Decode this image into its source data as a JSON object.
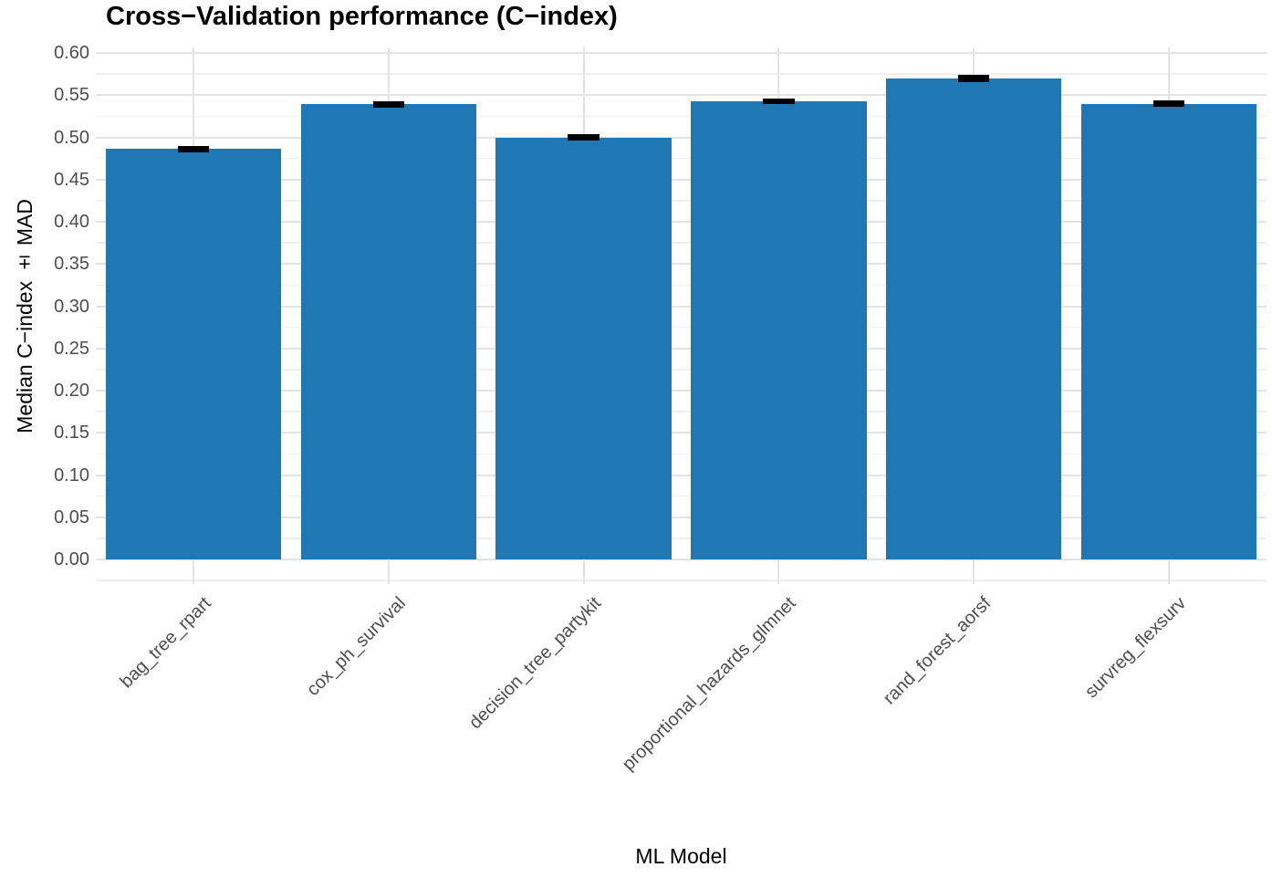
{
  "chart_data": {
    "type": "bar",
    "title": "Cross−Validation performance (C−index)",
    "xlabel": "ML Model",
    "ylabel": "Median C−index ± MAD",
    "categories": [
      "bag_tree_rpart",
      "cox_ph_survival",
      "decision_tree_partykit",
      "proportional_hazards_glmnet",
      "rand_forest_aorsf",
      "survreg_flexsurv"
    ],
    "values": [
      0.486,
      0.539,
      0.5,
      0.543,
      0.57,
      0.54
    ],
    "mad": [
      0.002,
      0.002,
      0.002,
      0.002,
      0.003,
      0.002
    ],
    "ylim": [
      0,
      0.6
    ],
    "ytick_step": 0.05,
    "yticks": [
      "0.00",
      "0.05",
      "0.10",
      "0.15",
      "0.20",
      "0.25",
      "0.30",
      "0.35",
      "0.40",
      "0.45",
      "0.50",
      "0.55",
      "0.60"
    ],
    "legend": "none",
    "grid": "on",
    "colors": {
      "bar_fill": "#1f77b4",
      "error_bar": "#000000",
      "grid_major": "#e3e3e3",
      "grid_minor": "#f0f0f0",
      "tick_text": "#4d4d4d",
      "title_text": "#000000",
      "background": "#ffffff"
    }
  }
}
